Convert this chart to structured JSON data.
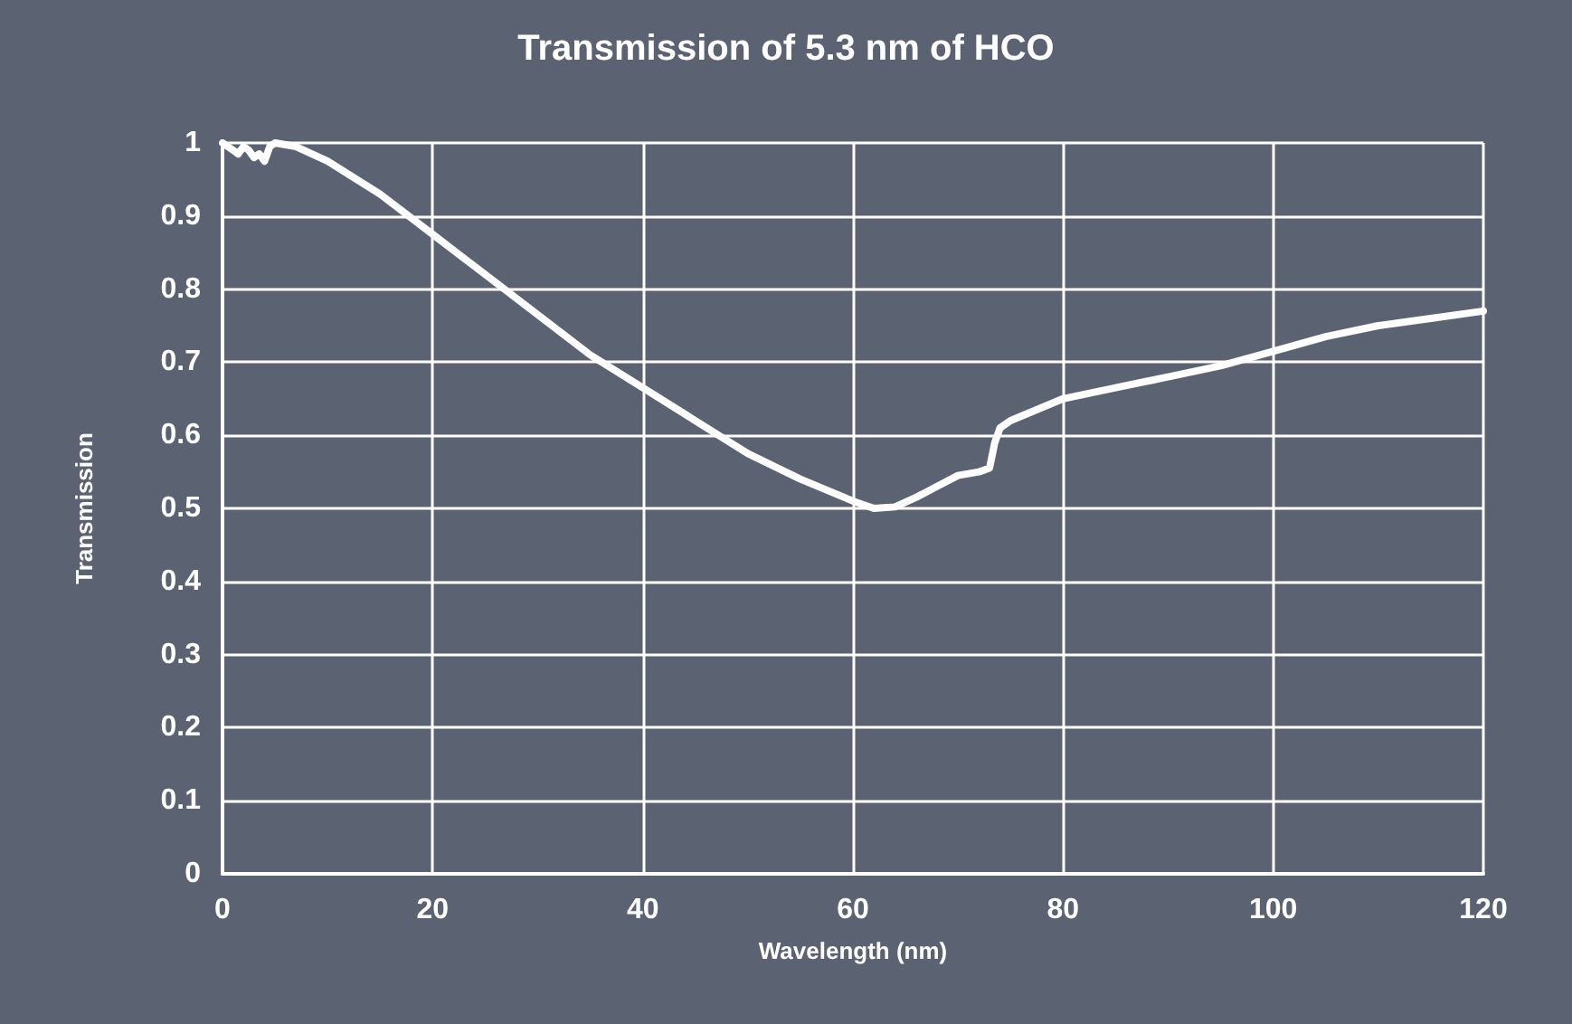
{
  "chart_data": {
    "type": "line",
    "title": "Transmission of 5.3 nm of HCO",
    "xlabel": "Wavelength (nm)",
    "ylabel": "Transmission",
    "series": [
      {
        "color": "#ffffff",
        "x": [
          0,
          1,
          1.5,
          2,
          2.5,
          3,
          3.5,
          4,
          4.5,
          5,
          7,
          10,
          15,
          20,
          25,
          30,
          35,
          40,
          45,
          50,
          55,
          60,
          62,
          64,
          66,
          68,
          70,
          72,
          73,
          73.5,
          74,
          75,
          80,
          85,
          90,
          95,
          100,
          105,
          110,
          115,
          120
        ],
        "values": [
          1,
          0.99,
          0.985,
          0.995,
          0.99,
          0.98,
          0.985,
          0.975,
          0.995,
          1,
          0.995,
          0.975,
          0.93,
          0.875,
          0.82,
          0.765,
          0.71,
          0.665,
          0.62,
          0.575,
          0.54,
          0.51,
          0.5,
          0.502,
          0.515,
          0.53,
          0.545,
          0.55,
          0.555,
          0.59,
          0.61,
          0.62,
          0.65,
          0.665,
          0.68,
          0.695,
          0.715,
          0.735,
          0.75,
          0.76,
          0.77
        ]
      }
    ],
    "xlim": [
      0,
      120
    ],
    "xticks": [
      0,
      20,
      40,
      60,
      80,
      100,
      120
    ],
    "ylim": [
      0,
      1
    ],
    "yticks": [
      0,
      0.1,
      0.2,
      0.3,
      0.4,
      0.5,
      0.6,
      0.7,
      0.8,
      0.9,
      1
    ],
    "grid": true,
    "marker": "none",
    "line_style": "solid"
  }
}
